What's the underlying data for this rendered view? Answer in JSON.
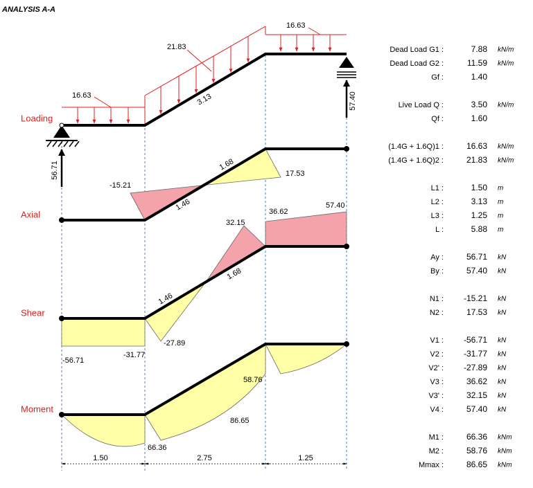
{
  "title": "ANALYSIS A-A",
  "diagram": {
    "row_labels": {
      "loading": "Loading",
      "axial": "Axial",
      "shear": "Shear",
      "moment": "Moment"
    },
    "loading": {
      "w_left": "16.63",
      "w_incline": "21.83",
      "w_right": "16.63",
      "incline_length": "3.13",
      "reaction_a": "56.71",
      "reaction_b": "57.40"
    },
    "axial": {
      "n1": "-15.21",
      "n2": "17.53",
      "seg_left": "1.46",
      "seg_right": "1.68"
    },
    "shear": {
      "v1": "-56.71",
      "v2": "-31.77",
      "v2p": "-27.89",
      "v3": "36.62",
      "v3p": "32.15",
      "v4": "57.40",
      "seg_left": "1.46",
      "seg_right": "1.68"
    },
    "moment": {
      "m1": "66.36",
      "m2": "58.76",
      "mmax": "86.65"
    },
    "dimensions": [
      "1.50",
      "2.75",
      "1.25"
    ]
  },
  "parameters": [
    [
      {
        "label": "Dead Load G1 :",
        "value": "7.88",
        "unit": "kN/m"
      },
      {
        "label": "Dead Load G2 :",
        "value": "11.59",
        "unit": "kN/m"
      },
      {
        "label": "Gf :",
        "value": "1.40",
        "color": "#1fa2d8"
      }
    ],
    [
      {
        "label": "Live Load Q :",
        "value": "3.50",
        "unit": "kN/m",
        "color": "#1fa2d8"
      },
      {
        "label": "Qf :",
        "value": "1.60",
        "color": "#1fa2d8"
      }
    ],
    [
      {
        "label": "(1.4G + 1.6Q)1 :",
        "value": "16.63",
        "unit": "kN/m"
      },
      {
        "label": "(1.4G + 1.6Q)2 :",
        "value": "21.83",
        "unit": "kN/m"
      }
    ],
    [
      {
        "label": "L1 :",
        "value": "1.50",
        "unit": "m"
      },
      {
        "label": "L2 :",
        "value": "3.13",
        "unit": "m"
      },
      {
        "label": "L3 :",
        "value": "1.25",
        "unit": "m"
      },
      {
        "label": "L :",
        "value": "5.88",
        "unit": "m"
      }
    ],
    [
      {
        "label": "Ay :",
        "value": "56.71",
        "unit": "kN"
      },
      {
        "label": "By :",
        "value": "57.40",
        "unit": "kN"
      }
    ],
    [
      {
        "label": "N1 :",
        "value": "-15.21",
        "unit": "kN"
      },
      {
        "label": "N2 :",
        "value": "17.53",
        "unit": "kN"
      }
    ],
    [
      {
        "label": "V1 :",
        "value": "-56.71",
        "unit": "kN"
      },
      {
        "label": "V2 :",
        "value": "-31.77",
        "unit": "kN"
      },
      {
        "label": "V2' :",
        "value": "-27.89",
        "unit": "kN"
      },
      {
        "label": "V3 :",
        "value": "36.62",
        "unit": "kN"
      },
      {
        "label": "V3' :",
        "value": "32.15",
        "unit": "kN"
      },
      {
        "label": "V4 :",
        "value": "57.40",
        "unit": "kN"
      }
    ],
    [
      {
        "label": "M1 :",
        "value": "66.36",
        "unit": "kNm"
      },
      {
        "label": "M2 :",
        "value": "58.76",
        "unit": "kNm"
      },
      {
        "label": "Mmax :",
        "value": "86.65",
        "unit": "kNm"
      }
    ]
  ]
}
